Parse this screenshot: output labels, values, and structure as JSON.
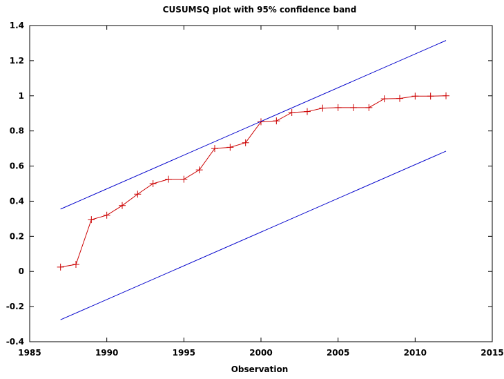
{
  "chart_data": {
    "type": "line",
    "title": "CUSUMSQ plot with 95% confidence band",
    "xlabel": "Observation",
    "ylabel": "",
    "xlim": [
      1985,
      2015
    ],
    "ylim": [
      -0.4,
      1.4
    ],
    "xticks": [
      1985,
      1990,
      1995,
      2000,
      2005,
      2010,
      2015
    ],
    "yticks": [
      -0.4,
      -0.2,
      0,
      0.2,
      0.4,
      0.6,
      0.8,
      1,
      1.2,
      1.4
    ],
    "xtick_labels": [
      "1985",
      "1990",
      "1995",
      "2000",
      "2005",
      "2010",
      "2015"
    ],
    "ytick_labels": [
      "-0.4",
      "-0.2",
      "0",
      "0.2",
      "0.4",
      "0.6",
      "0.8",
      "1",
      "1.2",
      "1.4"
    ],
    "grid": false,
    "legend": "none",
    "series": [
      {
        "color": "#cc0000",
        "marker": "plus",
        "x": [
          1987,
          1988,
          1989,
          1990,
          1991,
          1992,
          1993,
          1994,
          1995,
          1996,
          1997,
          1998,
          1999,
          2000,
          2001,
          2002,
          2003,
          2004,
          2005,
          2006,
          2007,
          2008,
          2009,
          2010,
          2011,
          2012
        ],
        "y": [
          0.025,
          0.04,
          0.295,
          0.32,
          0.375,
          0.44,
          0.5,
          0.525,
          0.525,
          0.578,
          0.7,
          0.707,
          0.733,
          0.852,
          0.857,
          0.905,
          0.91,
          0.93,
          0.933,
          0.933,
          0.933,
          0.983,
          0.985,
          0.998,
          0.998,
          1.0
        ]
      },
      {
        "color": "#0000cc",
        "marker": "none",
        "x": [
          1987,
          2012
        ],
        "y": [
          0.355,
          1.315
        ]
      },
      {
        "color": "#0000cc",
        "marker": "none",
        "x": [
          1987,
          2012
        ],
        "y": [
          -0.275,
          0.685
        ]
      }
    ]
  }
}
